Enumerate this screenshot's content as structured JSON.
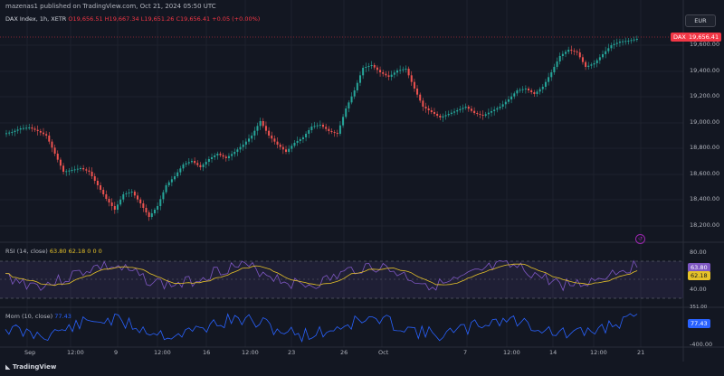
{
  "header": {
    "published_line": "mazenas1 published on TradingView.com, Oct 21, 2024 05:50 UTC",
    "symbol": "DAX Index, 1h, XETR",
    "ohlc": "O19,656.51  H19,667.34  L19,651.26  C19,656.41  +0.05 (+0.00%)"
  },
  "currency": "EUR",
  "price_axis": {
    "ticks": [
      "19,600.00",
      "19,400.00",
      "19,200.00",
      "19,000.00",
      "18,800.00",
      "18,600.00",
      "18,400.00",
      "18,200.00"
    ],
    "last_label": "DAX",
    "last_value": "19,656.41"
  },
  "rsi_panel": {
    "legend": "RSI (14, close)",
    "values_legend": "63.80  62.18  0  0  0",
    "value_rsi": "63.80",
    "value_ma": "62.18",
    "ticks": [
      "80.00",
      "40.00"
    ]
  },
  "mom_panel": {
    "legend": "Mom (10, close)",
    "value": "77.43",
    "ticks": [
      "-400.00"
    ],
    "top_tick": "351.00"
  },
  "time_axis": [
    "Sep",
    "12:00",
    "9",
    "12:00",
    "16",
    "12:00",
    "23",
    "26",
    "Oct",
    "7",
    "12:00",
    "14",
    "12:00",
    "21"
  ],
  "footer": {
    "brand": "TradingView"
  },
  "colors": {
    "up": "#26a69a",
    "down": "#ef5350",
    "rsi": "#7e57c2",
    "rsi_ma": "#e6c229",
    "mom": "#2962ff"
  }
}
